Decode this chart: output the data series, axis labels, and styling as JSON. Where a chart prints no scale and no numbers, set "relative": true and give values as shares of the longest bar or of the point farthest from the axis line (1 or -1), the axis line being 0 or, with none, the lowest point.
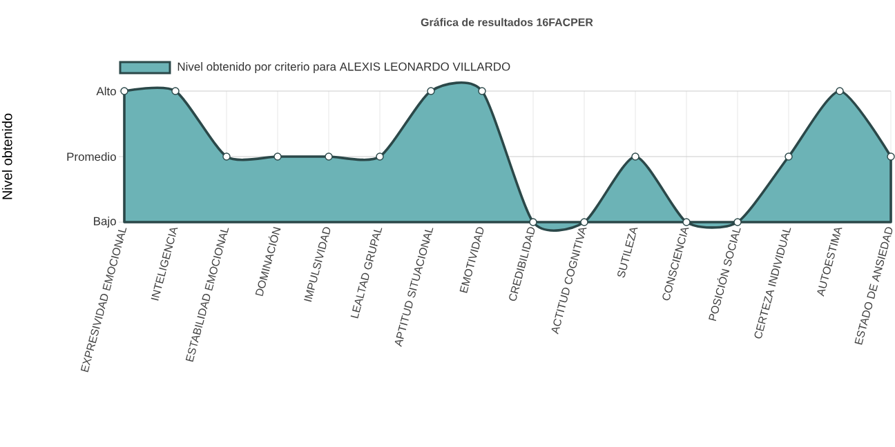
{
  "chart_data": {
    "type": "area",
    "title": "Gráfica de resultados 16FACPER",
    "ylabel": "Nivel obtenido",
    "categories": [
      "EXPRESIVIDAD EMOCIONAL",
      "INTELIGENCIA",
      "ESTABILIDAD EMOCIONAL",
      "DOMINACIÓN",
      "IMPULSIVIDAD",
      "LEALTAD GRUPAL",
      "APTITUD SITUACIONAL",
      "EMOTIVIDAD",
      "CREDIBILIDAD",
      "ACTITUD COGNITIVA",
      "SUTILEZA",
      "CONSCIENCIA",
      "POSICIÓN SOCIAL",
      "CERTEZA INDIVIDUAL",
      "AUTOESTIMA",
      "ESTADO DE ANSIEDAD"
    ],
    "series": [
      {
        "name": "Nivel obtenido por criterio para ALEXIS LEONARDO VILLARDO",
        "color": "#6cb3b6",
        "values": [
          1,
          1,
          0.5,
          0.5,
          0.5,
          0.5,
          1,
          1,
          0,
          0,
          0.5,
          0,
          0,
          0.5,
          1,
          0.5
        ]
      }
    ],
    "relative": true,
    "ref_lines": [
      {
        "axis": "y",
        "value": 0,
        "label": "Bajo",
        "color": "#cccccc"
      },
      {
        "axis": "y",
        "value": 0.5,
        "label": "Promedio",
        "color": "#cccccc"
      },
      {
        "axis": "y",
        "value": 1,
        "label": "Alto",
        "color": "#cccccc"
      }
    ],
    "grid": "x",
    "legend": "top",
    "marker": "circle",
    "line_style": "solid"
  }
}
